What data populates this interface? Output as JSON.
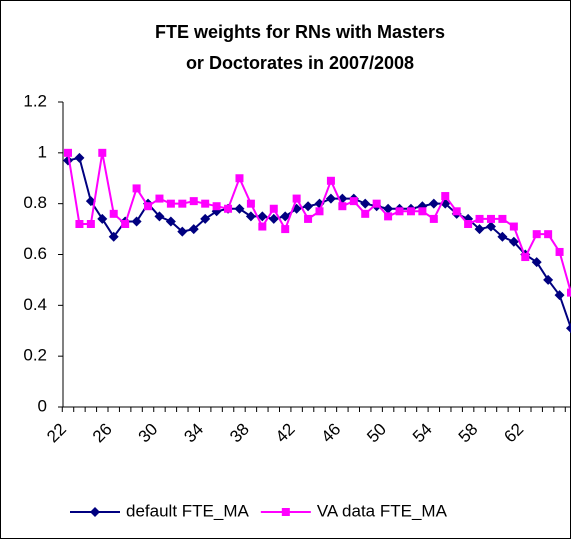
{
  "chart_data": {
    "type": "line",
    "title": "FTE weights for RNs with Masters or Doctorates in 2007/2008",
    "categories": [
      "22",
      null,
      null,
      null,
      "26",
      null,
      null,
      null,
      "30",
      null,
      null,
      null,
      "34",
      null,
      null,
      null,
      "38",
      null,
      null,
      null,
      "42",
      null,
      null,
      null,
      "46",
      null,
      null,
      null,
      "50",
      null,
      null,
      null,
      "54",
      null,
      null,
      null,
      "58",
      null,
      null,
      null,
      "62",
      null,
      null,
      null,
      null
    ],
    "series": [
      {
        "name": "default FTE_MA",
        "color": "#000080",
        "marker": "diamond",
        "values": [
          0.97,
          0.98,
          0.81,
          0.74,
          0.67,
          0.73,
          0.73,
          0.8,
          0.75,
          0.73,
          0.69,
          0.7,
          0.74,
          0.77,
          0.78,
          0.78,
          0.75,
          0.75,
          0.74,
          0.75,
          0.78,
          0.79,
          0.8,
          0.82,
          0.82,
          0.82,
          0.8,
          0.79,
          0.78,
          0.78,
          0.78,
          0.79,
          0.8,
          0.8,
          0.76,
          0.74,
          0.7,
          0.71,
          0.67,
          0.65,
          0.6,
          0.57,
          0.5,
          0.44,
          0.31
        ]
      },
      {
        "name": "VA data FTE_MA",
        "color": "#ff00ff",
        "marker": "square",
        "values": [
          1.0,
          0.72,
          0.72,
          1.0,
          0.76,
          0.72,
          0.86,
          0.79,
          0.82,
          0.8,
          0.8,
          0.81,
          0.8,
          0.79,
          0.78,
          0.9,
          0.8,
          0.71,
          0.78,
          0.7,
          0.82,
          0.74,
          0.77,
          0.89,
          0.79,
          0.81,
          0.76,
          0.8,
          0.75,
          0.77,
          0.77,
          0.77,
          0.74,
          0.83,
          0.77,
          0.72,
          0.74,
          0.74,
          0.74,
          0.71,
          0.59,
          0.68,
          0.68,
          0.61,
          0.45
        ]
      }
    ],
    "ylim": [
      0,
      1.2
    ],
    "yticks": [
      0,
      0.2,
      0.4,
      0.6,
      0.8,
      1,
      1.2
    ],
    "grid": false,
    "legend": "bottom"
  }
}
